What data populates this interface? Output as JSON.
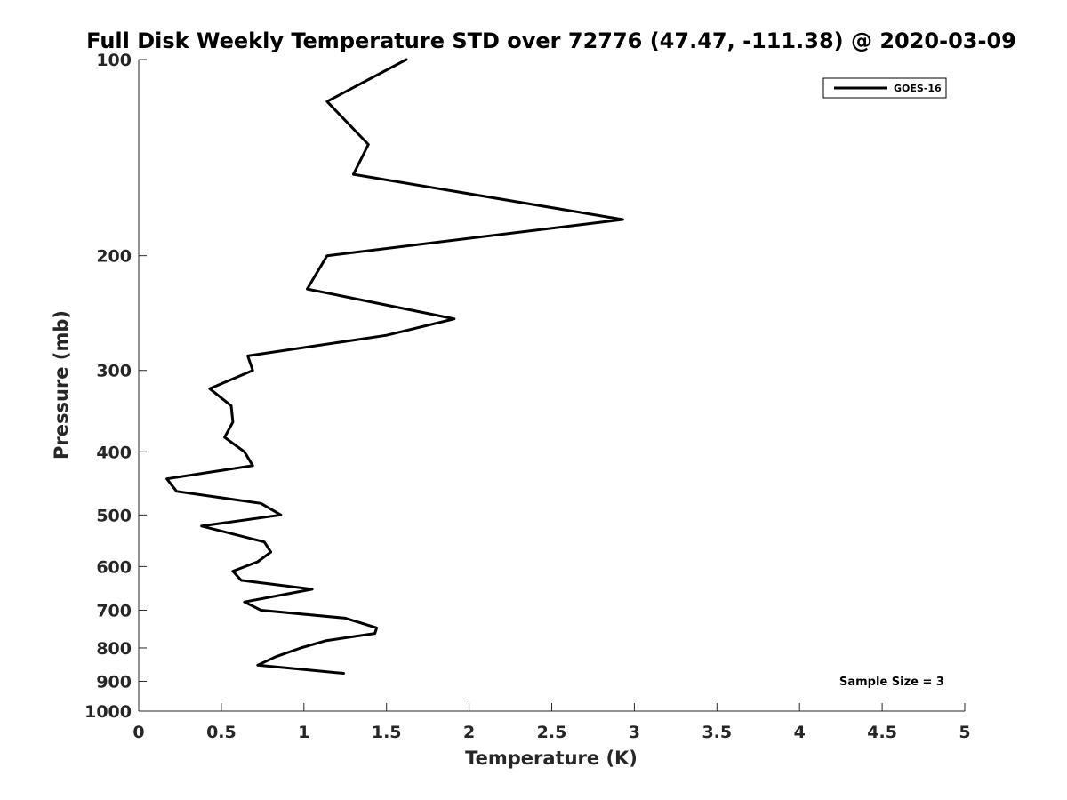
{
  "chart_data": {
    "type": "line",
    "title": "Full Disk Weekly Temperature STD over 72776 (47.47, -111.38) @ 2020-03-09",
    "xlabel": "Temperature (K)",
    "ylabel": "Pressure (mb)",
    "xlim": [
      0,
      5
    ],
    "ylim": [
      1000,
      100
    ],
    "y_scale": "log",
    "y_reversed": true,
    "x_ticks": [
      "0",
      "0.5",
      "1",
      "1.5",
      "2",
      "2.5",
      "3",
      "3.5",
      "4",
      "4.5",
      "5"
    ],
    "y_ticks": [
      "100",
      "200",
      "300",
      "400",
      "500",
      "600",
      "700",
      "800",
      "900",
      "1000"
    ],
    "grid": false,
    "legend": {
      "placement": "top-right",
      "entries": [
        "GOES-16"
      ]
    },
    "annotation": "Sample Size = 3",
    "series": [
      {
        "name": "GOES-16",
        "color": "#000000",
        "points": [
          {
            "x": 1.62,
            "p": 100
          },
          {
            "x": 1.14,
            "p": 116
          },
          {
            "x": 1.39,
            "p": 135
          },
          {
            "x": 1.3,
            "p": 150
          },
          {
            "x": 2.93,
            "p": 176
          },
          {
            "x": 1.14,
            "p": 200
          },
          {
            "x": 1.02,
            "p": 225
          },
          {
            "x": 1.91,
            "p": 250
          },
          {
            "x": 1.5,
            "p": 265
          },
          {
            "x": 0.66,
            "p": 285
          },
          {
            "x": 0.69,
            "p": 300
          },
          {
            "x": 0.43,
            "p": 320
          },
          {
            "x": 0.56,
            "p": 340
          },
          {
            "x": 0.57,
            "p": 360
          },
          {
            "x": 0.52,
            "p": 380
          },
          {
            "x": 0.64,
            "p": 400
          },
          {
            "x": 0.69,
            "p": 420
          },
          {
            "x": 0.17,
            "p": 440
          },
          {
            "x": 0.23,
            "p": 460
          },
          {
            "x": 0.74,
            "p": 480
          },
          {
            "x": 0.86,
            "p": 500
          },
          {
            "x": 0.38,
            "p": 520
          },
          {
            "x": 0.76,
            "p": 550
          },
          {
            "x": 0.8,
            "p": 570
          },
          {
            "x": 0.72,
            "p": 590
          },
          {
            "x": 0.57,
            "p": 610
          },
          {
            "x": 0.62,
            "p": 630
          },
          {
            "x": 1.05,
            "p": 650
          },
          {
            "x": 0.64,
            "p": 680
          },
          {
            "x": 0.74,
            "p": 700
          },
          {
            "x": 1.25,
            "p": 720
          },
          {
            "x": 1.44,
            "p": 745
          },
          {
            "x": 1.43,
            "p": 760
          },
          {
            "x": 1.13,
            "p": 780
          },
          {
            "x": 0.98,
            "p": 800
          },
          {
            "x": 0.83,
            "p": 825
          },
          {
            "x": 0.72,
            "p": 850
          },
          {
            "x": 1.24,
            "p": 875
          }
        ]
      }
    ]
  }
}
